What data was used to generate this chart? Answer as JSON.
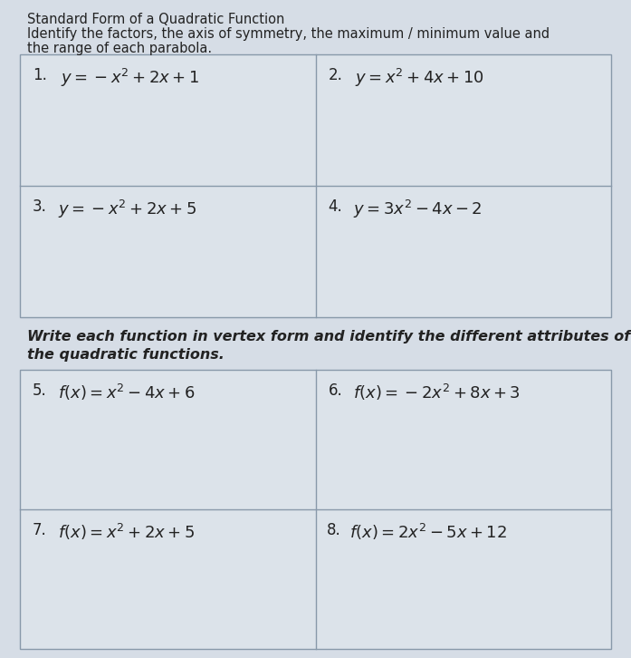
{
  "title_line1": "Standard Form of a Quadratic Function",
  "title_line2": "Identify the factors, the axis of symmetry, the maximum / minimum value and",
  "title_line3": "the range of each parabola.",
  "subtitle_line1": "Write each function in vertex form and identify the different attributes of",
  "subtitle_line2": "the quadratic functions.",
  "cell1_num": "1.",
  "cell1_eq": "$y = -x^2 + 2x + 1$",
  "cell2_num": "2.",
  "cell2_eq": "$y = x^2 + 4x + 10$",
  "cell3_num": "3.",
  "cell3_eq": "$y = -x^2 + 2x + 5$",
  "cell4_num": "4.",
  "cell4_eq": "$y = 3x^2 - 4x - 2$",
  "cell5_num": "5.",
  "cell5_eq": "$f(x) = x^2 - 4x + 6$",
  "cell6_num": "6.",
  "cell6_eq": "$f(x) = -2x^2 + 8x + 3$",
  "cell7_num": "7.",
  "cell7_eq": "$f(x) = x^2 + 2x + 5$",
  "cell8_num": "8.",
  "cell8_eq": "$f(x) = 2x^2 - 5x + 12$",
  "bg_color": "#d6dde6",
  "box_color": "#dce3ea",
  "border_color": "#8899aa",
  "text_color": "#222222",
  "header_fontsize": 10.5,
  "subtitle_fontsize": 11.5,
  "cell_fontsize": 13.0,
  "num_fontsize": 12.0
}
